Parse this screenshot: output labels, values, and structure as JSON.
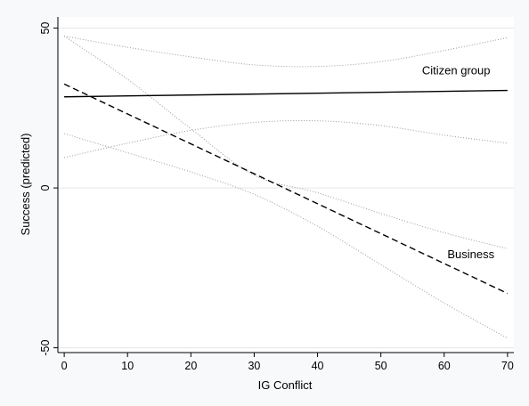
{
  "chart_data": {
    "type": "line",
    "xlabel": "IG Conflict",
    "ylabel": "Success (predicted)",
    "xlim": [
      -1,
      71
    ],
    "ylim": [
      -51.5,
      53.5
    ],
    "x_ticks": [
      0,
      10,
      20,
      30,
      40,
      50,
      60,
      70
    ],
    "y_ticks": [
      50,
      0,
      -50
    ],
    "grid": "horizontal",
    "series": [
      {
        "name": "Citizen group",
        "style": "solid",
        "color": "#000000",
        "x": [
          0,
          70
        ],
        "y": [
          28.5,
          30.5
        ],
        "ci_upper": {
          "x": [
            0,
            10,
            20,
            30,
            40,
            50,
            60,
            70
          ],
          "y": [
            47.5,
            44,
            41,
            38.5,
            38,
            39.5,
            43,
            47
          ]
        },
        "ci_lower": {
          "x": [
            0,
            10,
            20,
            30,
            40,
            50,
            60,
            70
          ],
          "y": [
            9.5,
            14,
            18,
            20.5,
            21,
            19.5,
            16.5,
            14
          ]
        }
      },
      {
        "name": "Business",
        "style": "dashed",
        "color": "#000000",
        "x": [
          0,
          70
        ],
        "y": [
          32.5,
          -33
        ],
        "ci_upper": {
          "x": [
            0,
            10,
            20,
            30,
            40,
            50,
            60,
            70
          ],
          "y": [
            47.5,
            34,
            18.5,
            4,
            -1.5,
            -8,
            -14,
            -19
          ]
        },
        "ci_lower": {
          "x": [
            0,
            10,
            20,
            30,
            40,
            50,
            60,
            70
          ],
          "y": [
            17,
            11,
            5,
            -2,
            -12,
            -24,
            -36,
            -47
          ]
        }
      }
    ],
    "annotations": [
      {
        "text": "Citizen group",
        "x": 56.5,
        "y": 35.5
      },
      {
        "text": "Business",
        "x": 60.5,
        "y": -22
      }
    ],
    "ci_color": "#9a9a9a"
  }
}
